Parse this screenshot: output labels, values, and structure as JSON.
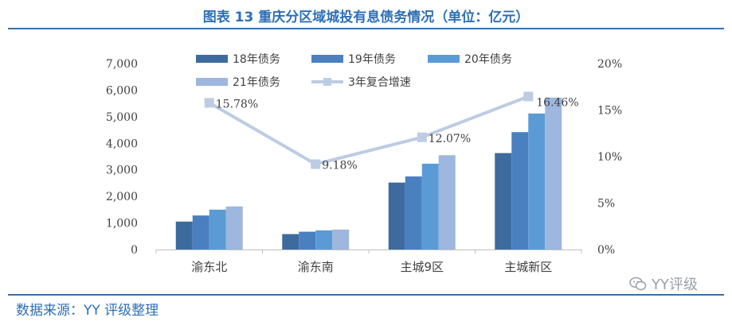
{
  "title": "图表 13 重庆分区域城投有息债务情况（单位：亿元）",
  "source": "数据来源：YY 评级整理",
  "watermark": "YY评级",
  "colors": {
    "title": "#2e6fb5",
    "s18": "#3e6b9e",
    "s19": "#4a80c0",
    "s20": "#5b9bd5",
    "s21": "#9db7df",
    "rate": "#bccce3"
  },
  "chart_data": {
    "type": "bar",
    "categories": [
      "渝东北",
      "渝东南",
      "主城9区",
      "主城新区"
    ],
    "series": [
      {
        "name": "18年债务",
        "values": [
          1050,
          580,
          2520,
          3630
        ]
      },
      {
        "name": "19年债务",
        "values": [
          1280,
          670,
          2750,
          4420
        ]
      },
      {
        "name": "20年债务",
        "values": [
          1500,
          720,
          3230,
          5120
        ]
      },
      {
        "name": "21年债务",
        "values": [
          1620,
          750,
          3550,
          5720
        ]
      }
    ],
    "line_series": {
      "name": "3年复合增速",
      "values": [
        15.78,
        9.18,
        12.07,
        16.46
      ],
      "labels": [
        "15.78%",
        "9.18%",
        "12.07%",
        "16.46%"
      ]
    },
    "y_left": {
      "min": 0,
      "max": 7000,
      "ticks": [
        "0",
        "1,000",
        "2,000",
        "3,000",
        "4,000",
        "5,000",
        "6,000",
        "7,000"
      ]
    },
    "y_right": {
      "min": 0,
      "max": 20,
      "ticks": [
        "0%",
        "5%",
        "10%",
        "15%",
        "20%"
      ]
    },
    "legend_position": "top"
  }
}
